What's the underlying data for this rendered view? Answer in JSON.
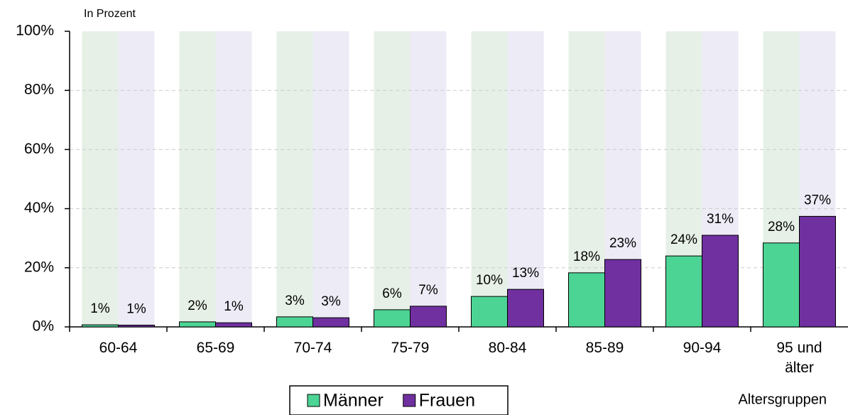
{
  "chart_data": {
    "type": "bar",
    "subtitle": "In Prozent",
    "x_label": "Altersgruppen",
    "categories": [
      "60-64",
      "65-69",
      "70-74",
      "75-79",
      "80-84",
      "85-89",
      "90-94",
      "95 und älter"
    ],
    "series": [
      {
        "name": "Männer",
        "color": "#4cd494",
        "band_color": "#e6f0e6",
        "values": [
          0.7,
          1.7,
          3.4,
          5.8,
          10.3,
          18.3,
          24.0,
          28.4
        ],
        "value_labels": [
          "1%",
          "2%",
          "3%",
          "6%",
          "10%",
          "18%",
          "24%",
          "28%"
        ]
      },
      {
        "name": "Frauen",
        "color": "#7030a0",
        "band_color": "#ecebf6",
        "values": [
          0.6,
          1.4,
          3.1,
          7.0,
          12.7,
          22.8,
          31.0,
          37.4
        ],
        "value_labels": [
          "1%",
          "1%",
          "3%",
          "7%",
          "13%",
          "23%",
          "31%",
          "37%"
        ]
      }
    ],
    "ylim": [
      0,
      100
    ],
    "yticks": [
      {
        "value": 0,
        "label": "0%"
      },
      {
        "value": 20,
        "label": "20%"
      },
      {
        "value": 40,
        "label": "40%"
      },
      {
        "value": 60,
        "label": "60%"
      },
      {
        "value": 80,
        "label": "80%"
      },
      {
        "value": 100,
        "label": "100%"
      }
    ],
    "grid": true,
    "legend": "bottom"
  }
}
